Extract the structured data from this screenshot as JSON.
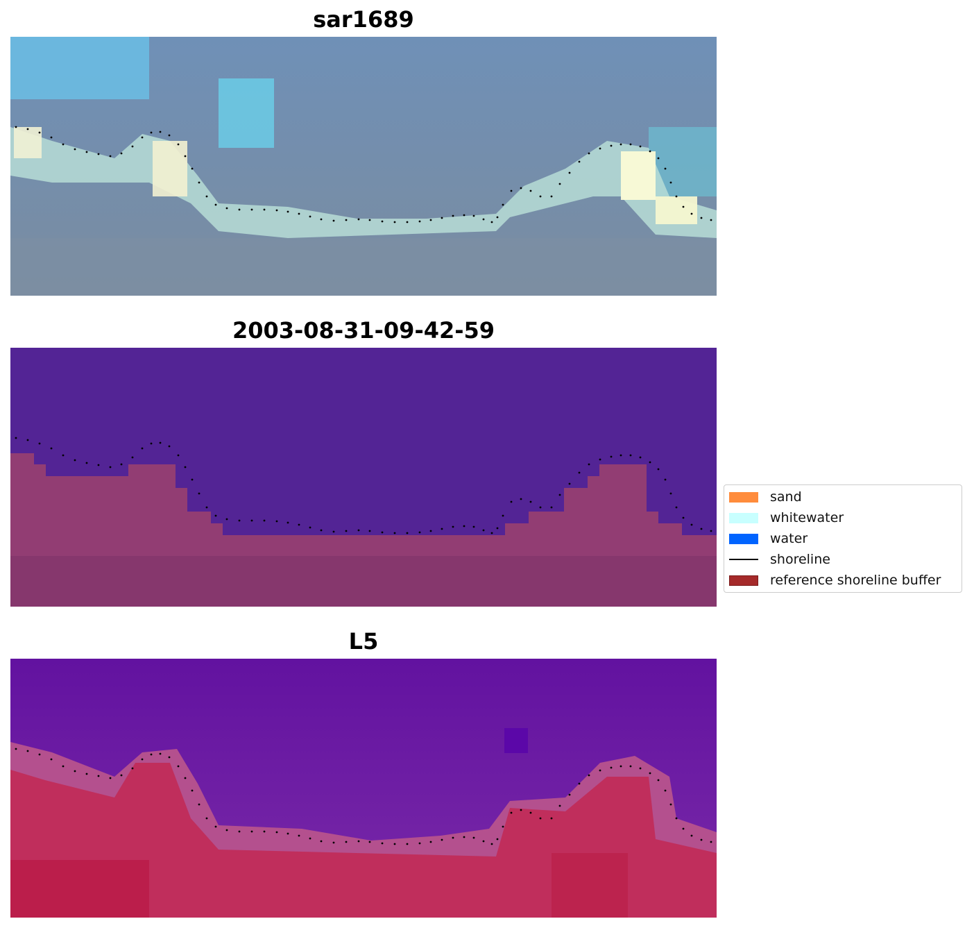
{
  "panels": [
    {
      "title": "sar1689"
    },
    {
      "title": "2003-08-31-09-42-59"
    },
    {
      "title": "L5"
    }
  ],
  "legend": {
    "items": [
      {
        "label": "sand",
        "color": "#ff8c3c",
        "kind": "patch"
      },
      {
        "label": "whitewater",
        "color": "#c8ffff",
        "kind": "patch"
      },
      {
        "label": "water",
        "color": "#0064ff",
        "kind": "patch"
      },
      {
        "label": "shoreline",
        "color": "#000000",
        "kind": "line"
      },
      {
        "label": "reference shoreline buffer",
        "color": "#a52a2a",
        "kind": "patch"
      }
    ]
  },
  "colors": {
    "sar_water": "#6d8fb2",
    "sar_bright_water": "#7ecfe8",
    "sar_whitewater": "#f6f6d8",
    "sar_sand_shadow": "#7f94a6",
    "class_water": "#532495",
    "class_buffer": "#86376d",
    "mndwi_water": "#6a1ea0",
    "mndwi_land": "#c0274f",
    "shoreline_dots": "#000000"
  }
}
